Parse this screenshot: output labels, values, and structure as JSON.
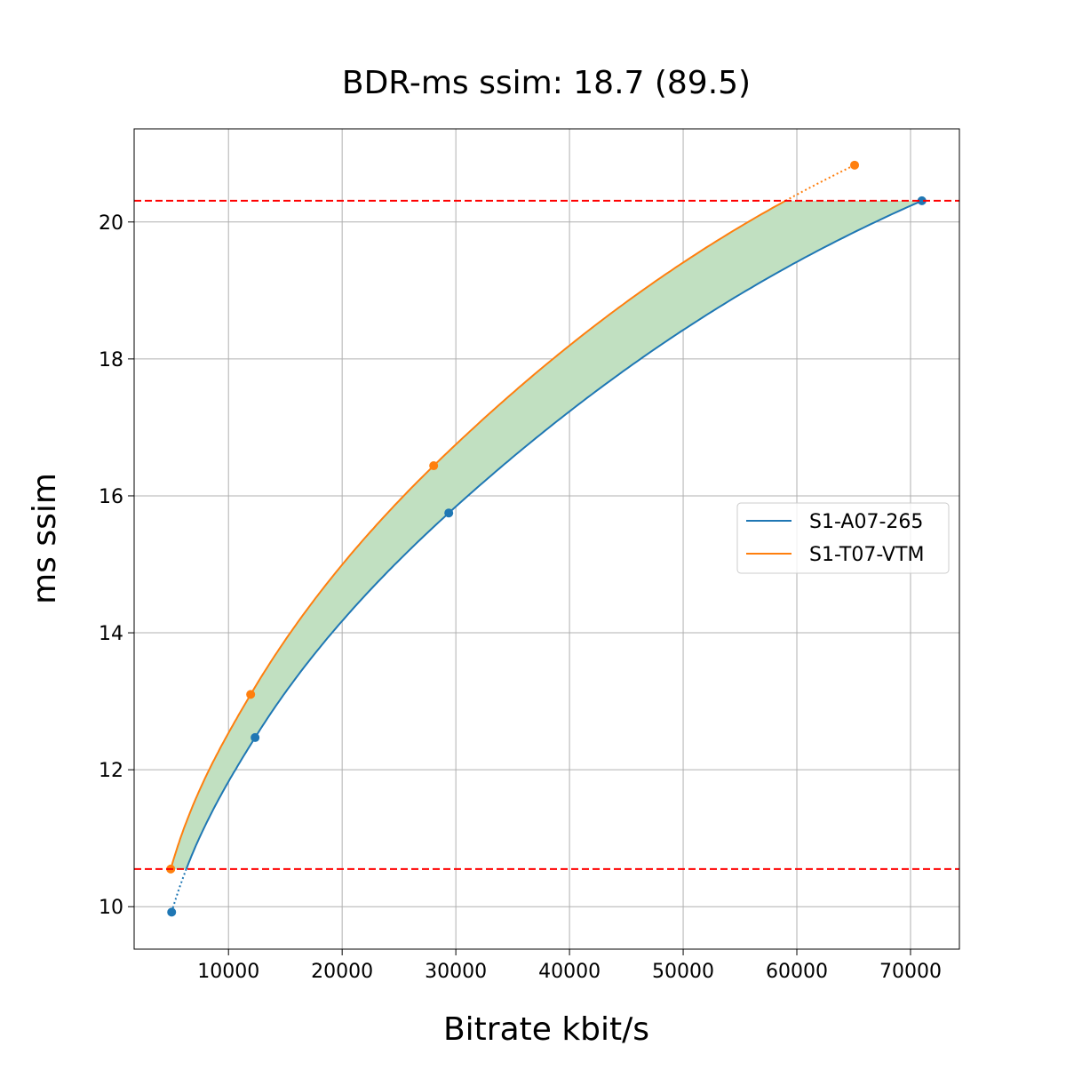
{
  "chart_data": {
    "type": "line",
    "title": "BDR-ms ssim: 18.7 (89.5)",
    "xlabel": "Bitrate kbit/s",
    "ylabel": "ms ssim",
    "xlim": [
      1700,
      74300
    ],
    "ylim": [
      9.38,
      21.36
    ],
    "xticks": [
      10000,
      20000,
      30000,
      40000,
      50000,
      60000,
      70000
    ],
    "yticks": [
      10,
      12,
      14,
      16,
      18,
      20
    ],
    "grid": true,
    "legend_placement": "center-right",
    "bounds": [
      10.55,
      20.31
    ],
    "bounds_color": "#ff0000",
    "fill_color": "#c1e0c1",
    "series": [
      {
        "name": "S1-A07-265",
        "color": "#1f77b4",
        "x": [
          5000,
          12340,
          29380,
          71000
        ],
        "y": [
          9.92,
          12.47,
          15.75,
          20.31
        ]
      },
      {
        "name": "S1-T07-VTM",
        "color": "#ff7f0e",
        "x": [
          4920,
          11950,
          28050,
          65080
        ],
        "y": [
          10.55,
          13.1,
          16.44,
          20.83
        ]
      }
    ]
  }
}
